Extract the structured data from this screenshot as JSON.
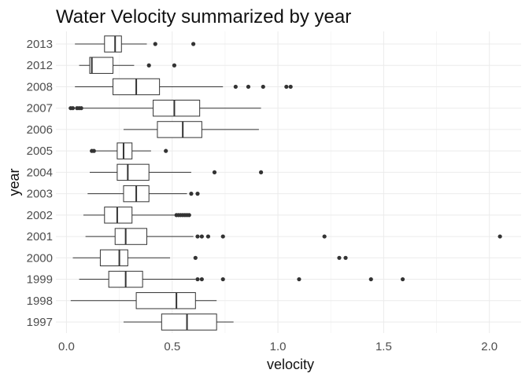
{
  "chart_data": {
    "type": "boxplot",
    "orientation": "horizontal",
    "title": "Water Velocity summarized by year",
    "xlabel": "velocity",
    "ylabel": "year",
    "xlim": [
      -0.05,
      2.15
    ],
    "xticks": [
      0.0,
      0.5,
      1.0,
      1.5,
      2.0
    ],
    "xtick_labels": [
      "0.0",
      "0.5",
      "1.0",
      "1.5",
      "2.0"
    ],
    "grid": true,
    "colors": {
      "box_stroke": "#333333",
      "box_fill": "#ffffff",
      "grid": "#ebebeb"
    },
    "categories": [
      "1997",
      "1998",
      "1999",
      "2000",
      "2001",
      "2002",
      "2003",
      "2004",
      "2005",
      "2006",
      "2007",
      "2008",
      "2012",
      "2013"
    ],
    "series": [
      {
        "category": "1997",
        "whisker_low": 0.27,
        "q1": 0.45,
        "median": 0.57,
        "q3": 0.71,
        "whisker_high": 0.79,
        "outliers": []
      },
      {
        "category": "1998",
        "whisker_low": 0.02,
        "q1": 0.33,
        "median": 0.52,
        "q3": 0.61,
        "whisker_high": 0.71,
        "outliers": []
      },
      {
        "category": "1999",
        "whisker_low": 0.06,
        "q1": 0.2,
        "median": 0.28,
        "q3": 0.36,
        "whisker_high": 0.61,
        "outliers": [
          0.62,
          0.64,
          0.74,
          1.1,
          1.44,
          1.59
        ]
      },
      {
        "category": "2000",
        "whisker_low": 0.03,
        "q1": 0.16,
        "median": 0.25,
        "q3": 0.29,
        "whisker_high": 0.49,
        "outliers": [
          0.61,
          1.29,
          1.32
        ]
      },
      {
        "category": "2001",
        "whisker_low": 0.09,
        "q1": 0.23,
        "median": 0.28,
        "q3": 0.38,
        "whisker_high": 0.6,
        "outliers": [
          0.62,
          0.64,
          0.67,
          0.74,
          1.22,
          2.05
        ]
      },
      {
        "category": "2002",
        "whisker_low": 0.08,
        "q1": 0.18,
        "median": 0.24,
        "q3": 0.31,
        "whisker_high": 0.51,
        "outliers": [
          0.52,
          0.53,
          0.54,
          0.55,
          0.56,
          0.57,
          0.58
        ]
      },
      {
        "category": "2003",
        "whisker_low": 0.1,
        "q1": 0.27,
        "median": 0.33,
        "q3": 0.39,
        "whisker_high": 0.57,
        "outliers": [
          0.59,
          0.62
        ]
      },
      {
        "category": "2004",
        "whisker_low": 0.11,
        "q1": 0.24,
        "median": 0.29,
        "q3": 0.39,
        "whisker_high": 0.59,
        "outliers": [
          0.7,
          0.92
        ]
      },
      {
        "category": "2005",
        "whisker_low": 0.14,
        "q1": 0.24,
        "median": 0.27,
        "q3": 0.31,
        "whisker_high": 0.4,
        "outliers": [
          0.12,
          0.13,
          0.47
        ]
      },
      {
        "category": "2006",
        "whisker_low": 0.27,
        "q1": 0.43,
        "median": 0.55,
        "q3": 0.64,
        "whisker_high": 0.91,
        "outliers": []
      },
      {
        "category": "2007",
        "whisker_low": 0.08,
        "q1": 0.41,
        "median": 0.51,
        "q3": 0.63,
        "whisker_high": 0.92,
        "outliers": [
          0.02,
          0.03,
          0.05,
          0.06,
          0.07
        ]
      },
      {
        "category": "2008",
        "whisker_low": 0.04,
        "q1": 0.22,
        "median": 0.33,
        "q3": 0.44,
        "whisker_high": 0.74,
        "outliers": [
          0.8,
          0.86,
          0.93,
          1.04,
          1.06
        ]
      },
      {
        "category": "2012",
        "whisker_low": 0.06,
        "q1": 0.11,
        "median": 0.12,
        "q3": 0.22,
        "whisker_high": 0.32,
        "outliers": [
          0.39,
          0.51
        ]
      },
      {
        "category": "2013",
        "whisker_low": 0.04,
        "q1": 0.18,
        "median": 0.23,
        "q3": 0.26,
        "whisker_high": 0.38,
        "outliers": [
          0.42,
          0.6
        ]
      }
    ]
  }
}
